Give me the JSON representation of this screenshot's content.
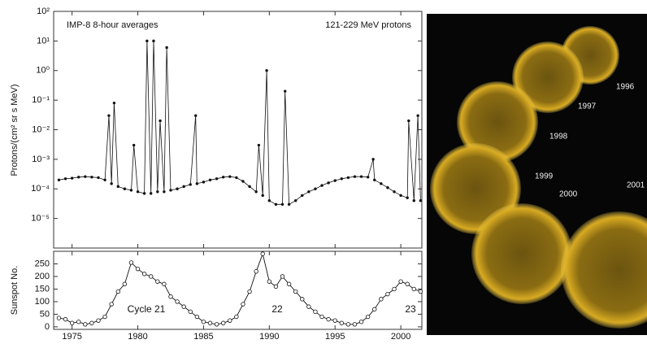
{
  "chart_data": [
    {
      "type": "line",
      "yscale": "log",
      "ylabel": "Protons/(cm² sr s MeV)",
      "annotations": [
        "IMP-8 8-hour averages",
        "121-229 MeV protons"
      ],
      "xlim": [
        1973.6,
        2001.6
      ],
      "ylim": [
        1e-06,
        100
      ],
      "yticks": [
        {
          "value": 1e-05,
          "label": "10⁻⁵"
        },
        {
          "value": 0.0001,
          "label": "10⁻⁴"
        },
        {
          "value": 0.001,
          "label": "10⁻³"
        },
        {
          "value": 0.01,
          "label": "10⁻²"
        },
        {
          "value": 0.1,
          "label": "10⁻¹"
        },
        {
          "value": 1,
          "label": "10⁰"
        },
        {
          "value": 10,
          "label": "10¹"
        },
        {
          "value": 100,
          "label": "10²"
        }
      ],
      "series": [
        {
          "color": "#111111",
          "x": [
            1974.0,
            1974.5,
            1975.0,
            1975.5,
            1976.0,
            1976.5,
            1977.0,
            1977.5,
            1977.8,
            1978.0,
            1978.2,
            1978.5,
            1979.0,
            1979.5,
            1979.7,
            1980.0,
            1980.5,
            1980.7,
            1981.0,
            1981.2,
            1981.5,
            1981.7,
            1982.0,
            1982.2,
            1982.5,
            1983.0,
            1983.5,
            1984.0,
            1984.4,
            1984.5,
            1985.0,
            1985.5,
            1986.0,
            1986.5,
            1987.0,
            1987.5,
            1988.0,
            1988.5,
            1989.0,
            1989.2,
            1989.5,
            1989.8,
            1990.0,
            1990.5,
            1991.0,
            1991.2,
            1991.5,
            1992.0,
            1992.5,
            1993.0,
            1993.5,
            1994.0,
            1994.5,
            1995.0,
            1995.5,
            1996.0,
            1996.5,
            1997.0,
            1997.5,
            1997.9,
            1998.0,
            1998.5,
            1999.0,
            1999.5,
            2000.0,
            2000.5,
            2000.6,
            2001.0,
            2001.3,
            2001.5
          ],
          "values": [
            0.0002,
            0.00022,
            0.00023,
            0.00025,
            0.00026,
            0.00025,
            0.00024,
            0.0002,
            0.03,
            0.00015,
            0.08,
            0.00012,
            0.0001,
            9e-05,
            0.003,
            8e-05,
            7e-05,
            10,
            7e-05,
            10,
            8e-05,
            0.02,
            8e-05,
            6,
            9e-05,
            0.0001,
            0.00012,
            0.00014,
            0.03,
            0.00015,
            0.00017,
            0.0002,
            0.00022,
            0.00025,
            0.00026,
            0.00024,
            0.00018,
            0.00012,
            8e-05,
            0.003,
            6e-05,
            1,
            4e-05,
            3e-05,
            3e-05,
            0.2,
            3e-05,
            4e-05,
            6e-05,
            8e-05,
            0.0001,
            0.00013,
            0.00016,
            0.00019,
            0.00022,
            0.00024,
            0.00026,
            0.00026,
            0.00025,
            0.001,
            0.0002,
            0.00015,
            0.00011,
            8e-05,
            6e-05,
            5e-05,
            0.02,
            4e-05,
            0.03,
            4e-05
          ]
        }
      ]
    },
    {
      "type": "line",
      "ylabel": "Sunspot No.",
      "annotations": [
        "Cycle 21",
        "22",
        "23"
      ],
      "xlim": [
        1973.6,
        2001.6
      ],
      "ylim": [
        -10,
        300
      ],
      "xticks": [
        1975,
        1980,
        1985,
        1990,
        1995,
        2000
      ],
      "yticks": [
        0,
        50,
        100,
        150,
        200,
        250
      ],
      "series": [
        {
          "color": "#111111",
          "x": [
            1974.0,
            1974.5,
            1975.0,
            1975.5,
            1976.0,
            1976.5,
            1977.0,
            1977.5,
            1978.0,
            1978.5,
            1979.0,
            1979.5,
            1980.0,
            1980.5,
            1981.0,
            1981.5,
            1982.0,
            1982.5,
            1983.0,
            1983.5,
            1984.0,
            1984.5,
            1985.0,
            1985.5,
            1986.0,
            1986.5,
            1987.0,
            1987.5,
            1988.0,
            1988.5,
            1989.0,
            1989.5,
            1990.0,
            1990.5,
            1991.0,
            1991.5,
            1992.0,
            1992.5,
            1993.0,
            1993.5,
            1994.0,
            1994.5,
            1995.0,
            1995.5,
            1996.0,
            1996.5,
            1997.0,
            1997.5,
            1998.0,
            1998.5,
            1999.0,
            1999.5,
            2000.0,
            2000.5,
            2001.0,
            2001.5
          ],
          "values": [
            35,
            30,
            15,
            20,
            10,
            15,
            25,
            40,
            90,
            140,
            170,
            255,
            230,
            210,
            200,
            180,
            170,
            120,
            100,
            80,
            60,
            40,
            20,
            15,
            10,
            15,
            25,
            40,
            90,
            140,
            220,
            290,
            180,
            160,
            200,
            170,
            140,
            110,
            80,
            60,
            40,
            30,
            25,
            15,
            10,
            10,
            20,
            40,
            70,
            110,
            130,
            150,
            180,
            170,
            150,
            140
          ]
        }
      ]
    }
  ],
  "image": {
    "labels": [
      "1996",
      "1997",
      "1998",
      "1999",
      "2000",
      "2001"
    ]
  }
}
